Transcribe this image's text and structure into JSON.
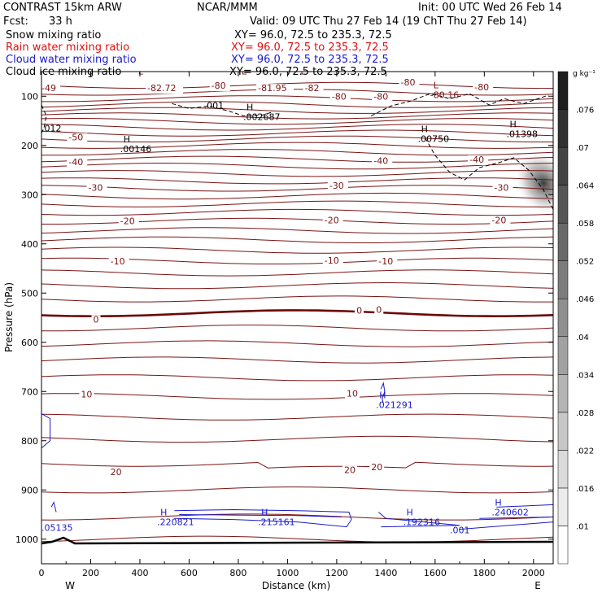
{
  "header": {
    "left_line1": "CONTRAST 15km ARW",
    "fcst_label": "Fcst:",
    "fcst_value": "33 h",
    "center_line1": "NCAR/MMM",
    "init": "Init: 00 UTC Wed 26 Feb 14",
    "valid": "Valid: 09 UTC Thu 27 Feb 14 (19 ChT Thu 27 Feb 14)"
  },
  "fields": [
    {
      "name": "Snow mixing ratio",
      "xy": "XY=   96.0, 72.5 to 235.3, 72.5",
      "color": "#000000"
    },
    {
      "name": "Rain water mixing ratio",
      "xy": "XY=   96.0, 72.5 to 235.3, 72.5",
      "color": "#e01010"
    },
    {
      "name": "Cloud water mixing ratio",
      "xy": "XY=   96.0, 72.5 to 235.3, 72.5",
      "color": "#1a1acc"
    },
    {
      "name": "Cloud ice mixing ratio",
      "xy": "XY=   96.0, 72.5 to 235.3, 72.5",
      "color": "#000000"
    }
  ],
  "colors": {
    "temperature": "#7a1414",
    "zero_line": "#6a0808",
    "cloud_water": "#1a1acc",
    "cloud_ice": "#000000"
  },
  "chart_data": {
    "type": "contour cross-section",
    "xlabel": "Distance (km)",
    "ylabel": "Pressure (hPa)",
    "xlim": [
      0,
      2080
    ],
    "ylim": [
      1050,
      50
    ],
    "x_ticks": [
      0,
      200,
      400,
      600,
      800,
      1000,
      1200,
      1400,
      1600,
      1800,
      2000
    ],
    "x_tick_labels": [
      "0",
      "200",
      "400",
      "600",
      "800",
      "1000",
      "1200",
      "1400",
      "1600",
      "1800",
      "2000"
    ],
    "y_ticks": [
      100,
      200,
      300,
      400,
      500,
      600,
      700,
      800,
      900,
      1000
    ],
    "y_tick_labels": [
      "100",
      "200",
      "300",
      "400",
      "500",
      "600",
      "700",
      "800",
      "900",
      "1000"
    ],
    "x_end_labels": {
      "left": "W",
      "right": "E"
    },
    "colorbar": {
      "unit": "g kg⁻¹",
      "levels": [
        0.01,
        0.016,
        0.022,
        0.028,
        0.034,
        0.04,
        0.046,
        0.052,
        0.058,
        0.064,
        0.07,
        0.076
      ],
      "labels": [
        ".01",
        ".016",
        ".022",
        ".028",
        ".034",
        ".04",
        ".046",
        ".052",
        ".058",
        ".064",
        ".07",
        ".076"
      ]
    },
    "temperature_labels": [
      {
        "text": "-49",
        "x": 0,
        "p": 90
      },
      {
        "text": "-82.72",
        "x": 430,
        "p": 90
      },
      {
        "text": "-81.95",
        "x": 880,
        "p": 90
      },
      {
        "text": "-82",
        "x": 1070,
        "p": 90
      },
      {
        "text": "-80",
        "x": 690,
        "p": 85
      },
      {
        "text": "-80",
        "x": 1460,
        "p": 78
      },
      {
        "text": "-80",
        "x": 1180,
        "p": 107
      },
      {
        "text": "-80",
        "x": 1350,
        "p": 107
      },
      {
        "text": "-80",
        "x": 1760,
        "p": 88
      },
      {
        "text": "-50",
        "x": 110,
        "p": 190
      },
      {
        "text": "-40",
        "x": 110,
        "p": 240
      },
      {
        "text": "-40",
        "x": 1350,
        "p": 238
      },
      {
        "text": "-40",
        "x": 1740,
        "p": 235
      },
      {
        "text": "-30",
        "x": 190,
        "p": 292
      },
      {
        "text": "-30",
        "x": 1170,
        "p": 288
      },
      {
        "text": "-30",
        "x": 1840,
        "p": 292
      },
      {
        "text": "-20",
        "x": 320,
        "p": 360
      },
      {
        "text": "-20",
        "x": 1150,
        "p": 358
      },
      {
        "text": "-20",
        "x": 1830,
        "p": 358
      },
      {
        "text": "-10",
        "x": 280,
        "p": 442
      },
      {
        "text": "-10",
        "x": 1150,
        "p": 440
      },
      {
        "text": "-10",
        "x": 1370,
        "p": 442
      },
      {
        "text": "0",
        "x": 210,
        "p": 560
      },
      {
        "text": "0",
        "x": 1280,
        "p": 542
      },
      {
        "text": "0",
        "x": 1360,
        "p": 540
      },
      {
        "text": "10",
        "x": 160,
        "p": 712
      },
      {
        "text": "10",
        "x": 1240,
        "p": 710
      },
      {
        "text": "20",
        "x": 280,
        "p": 870
      },
      {
        "text": "20",
        "x": 1230,
        "p": 866
      },
      {
        "text": "20",
        "x": 1340,
        "p": 860
      }
    ],
    "extrema_labels": [
      {
        "marker": "L",
        "value": "",
        "x": 380,
        "p": 72,
        "color": "temperature"
      },
      {
        "marker": "L",
        "value": "",
        "x": 800,
        "p": 72,
        "color": "temperature"
      },
      {
        "marker": "L",
        "value": "",
        "x": 1040,
        "p": 72,
        "color": "temperature"
      },
      {
        "marker": "L",
        "value": "-80.16",
        "x": 1580,
        "p": 100,
        "color": "temperature"
      },
      {
        "marker": "",
        "value": ".001",
        "x": 660,
        "p": 122,
        "color": "cloud_ice"
      },
      {
        "marker": "H",
        "value": ".002687",
        "x": 820,
        "p": 145,
        "color": "cloud_ice"
      },
      {
        "marker": "H",
        "value": ".00146",
        "x": 320,
        "p": 210,
        "color": "cloud_ice"
      },
      {
        "marker": "H",
        "value": ".00750",
        "x": 1530,
        "p": 190,
        "color": "cloud_ice"
      },
      {
        "marker": "H",
        "value": ".01398",
        "x": 1890,
        "p": 180,
        "color": "cloud_ice"
      },
      {
        "marker": "",
        "value": ".012",
        "x": 0,
        "p": 168,
        "color": "cloud_ice"
      },
      {
        "marker": "H",
        "value": ".021291",
        "x": 1360,
        "p": 730,
        "color": "cloud_water"
      },
      {
        "marker": "",
        "value": ".05135",
        "x": 0,
        "p": 980,
        "color": "cloud_water"
      },
      {
        "marker": "H",
        "value": ".220821",
        "x": 470,
        "p": 968,
        "color": "cloud_water"
      },
      {
        "marker": "H",
        "value": ".215161",
        "x": 880,
        "p": 968,
        "color": "cloud_water"
      },
      {
        "marker": "H",
        "value": ".192316",
        "x": 1470,
        "p": 968,
        "color": "cloud_water"
      },
      {
        "marker": "",
        "value": ".001",
        "x": 1660,
        "p": 985,
        "color": "cloud_water"
      },
      {
        "marker": "H",
        "value": ".240602",
        "x": 1830,
        "p": 948,
        "color": "cloud_water"
      }
    ]
  }
}
